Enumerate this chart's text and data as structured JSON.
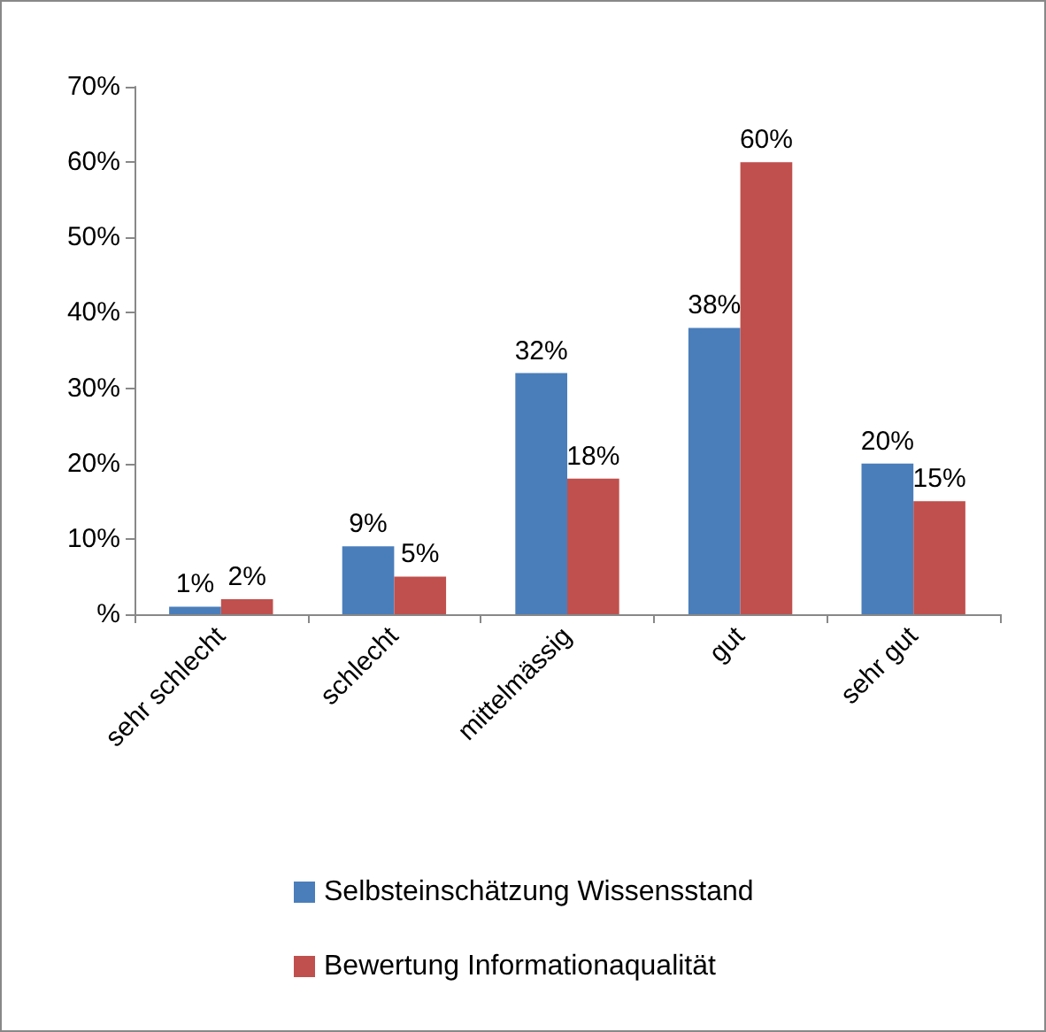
{
  "chart_data": {
    "type": "bar",
    "categories": [
      "sehr schlecht",
      "schlecht",
      "mittelmässig",
      "gut",
      "sehr gut"
    ],
    "series": [
      {
        "name": "Selbsteinschätzung Wissensstand",
        "color": "#4a7ebb",
        "values": [
          1,
          9,
          32,
          38,
          20
        ],
        "value_labels": [
          "1%",
          "9%",
          "32%",
          "38%",
          "20%"
        ]
      },
      {
        "name": "Bewertung Informationaqualität",
        "color": "#c0504d",
        "values": [
          2,
          5,
          18,
          60,
          15
        ],
        "value_labels": [
          "2%",
          "5%",
          "18%",
          "60%",
          "15%"
        ]
      }
    ],
    "ylim": [
      0,
      70
    ],
    "yticks": [
      {
        "value": 0,
        "label": "%"
      },
      {
        "value": 10,
        "label": "10%"
      },
      {
        "value": 20,
        "label": "20%"
      },
      {
        "value": 30,
        "label": "30%"
      },
      {
        "value": 40,
        "label": "40%"
      },
      {
        "value": 50,
        "label": "50%"
      },
      {
        "value": 60,
        "label": "60%"
      },
      {
        "value": 70,
        "label": "70%"
      }
    ],
    "grid": false,
    "legend": "bottom"
  }
}
